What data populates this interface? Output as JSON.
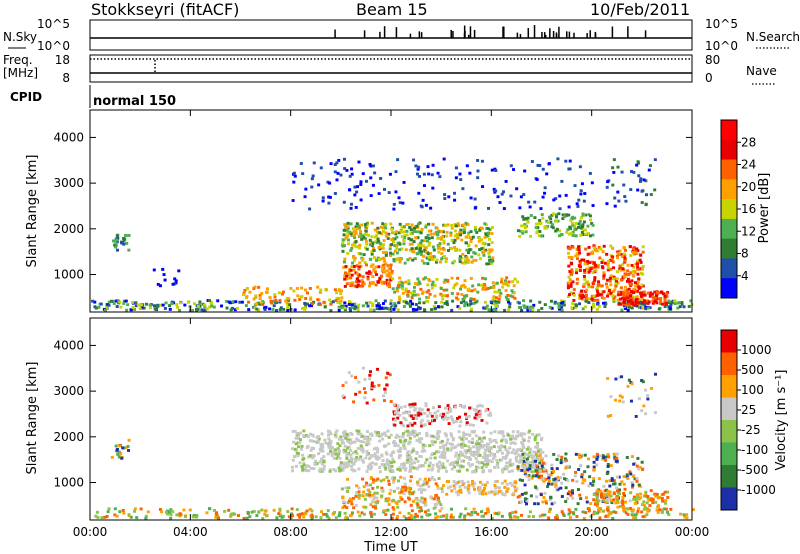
{
  "header": {
    "station": "Stokkseyri (fitACF)",
    "beam": "Beam 15",
    "date": "10/Feb/2011"
  },
  "params": {
    "nsky_label": "N.Sky",
    "nsearch_label": "N.Search",
    "noise_left_ticks": [
      "10^5",
      "10^0"
    ],
    "noise_right_ticks": [
      "10^5",
      "10^0"
    ],
    "freq_label_1": "Freq.",
    "freq_label_2": "[MHz]",
    "freq_ticks": [
      "18",
      "8"
    ],
    "nave_label": "Nave",
    "nave_ticks": [
      "80",
      "0"
    ],
    "cpid_label": "CPID",
    "cpid_value": "normal 150"
  },
  "chart_data": [
    {
      "type": "heatmap",
      "panel": "power",
      "ylabel": "Slant Range [km]",
      "y_ticks": [
        1000,
        2000,
        3000,
        4000
      ],
      "ylim": [
        180,
        4600
      ],
      "xlim_hours": [
        0,
        24
      ],
      "colorbar_label": "Power [dB]",
      "colorbar_ticks": [
        "28",
        "24",
        "20",
        "16",
        "12",
        "8",
        "4"
      ],
      "colors": [
        "#0000ff",
        "#1f4fa8",
        "#2e7d32",
        "#4caf50",
        "#c8d400",
        "#ffa000",
        "#ff6000",
        "#e60000",
        "#ff0000"
      ]
    },
    {
      "type": "heatmap",
      "panel": "velocity",
      "ylabel": "Slant Range [km]",
      "y_ticks": [
        1000,
        2000,
        3000,
        4000
      ],
      "ylim": [
        180,
        4600
      ],
      "xlim_hours": [
        0,
        24
      ],
      "xlabel": "Time UT",
      "x_ticks": [
        "00:00",
        "04:00",
        "08:00",
        "12:00",
        "16:00",
        "20:00",
        "00:00"
      ],
      "colorbar_label": "Velocity [m s⁻¹]",
      "colorbar_ticks": [
        "1000",
        "500",
        "100",
        "25",
        "-25",
        "-100",
        "-500",
        "-1000"
      ],
      "colors": [
        "#1c2fa8",
        "#2e7d32",
        "#4caf50",
        "#8bc34a",
        "#c8c8c8",
        "#ffa000",
        "#ff6000",
        "#e60000"
      ]
    }
  ]
}
